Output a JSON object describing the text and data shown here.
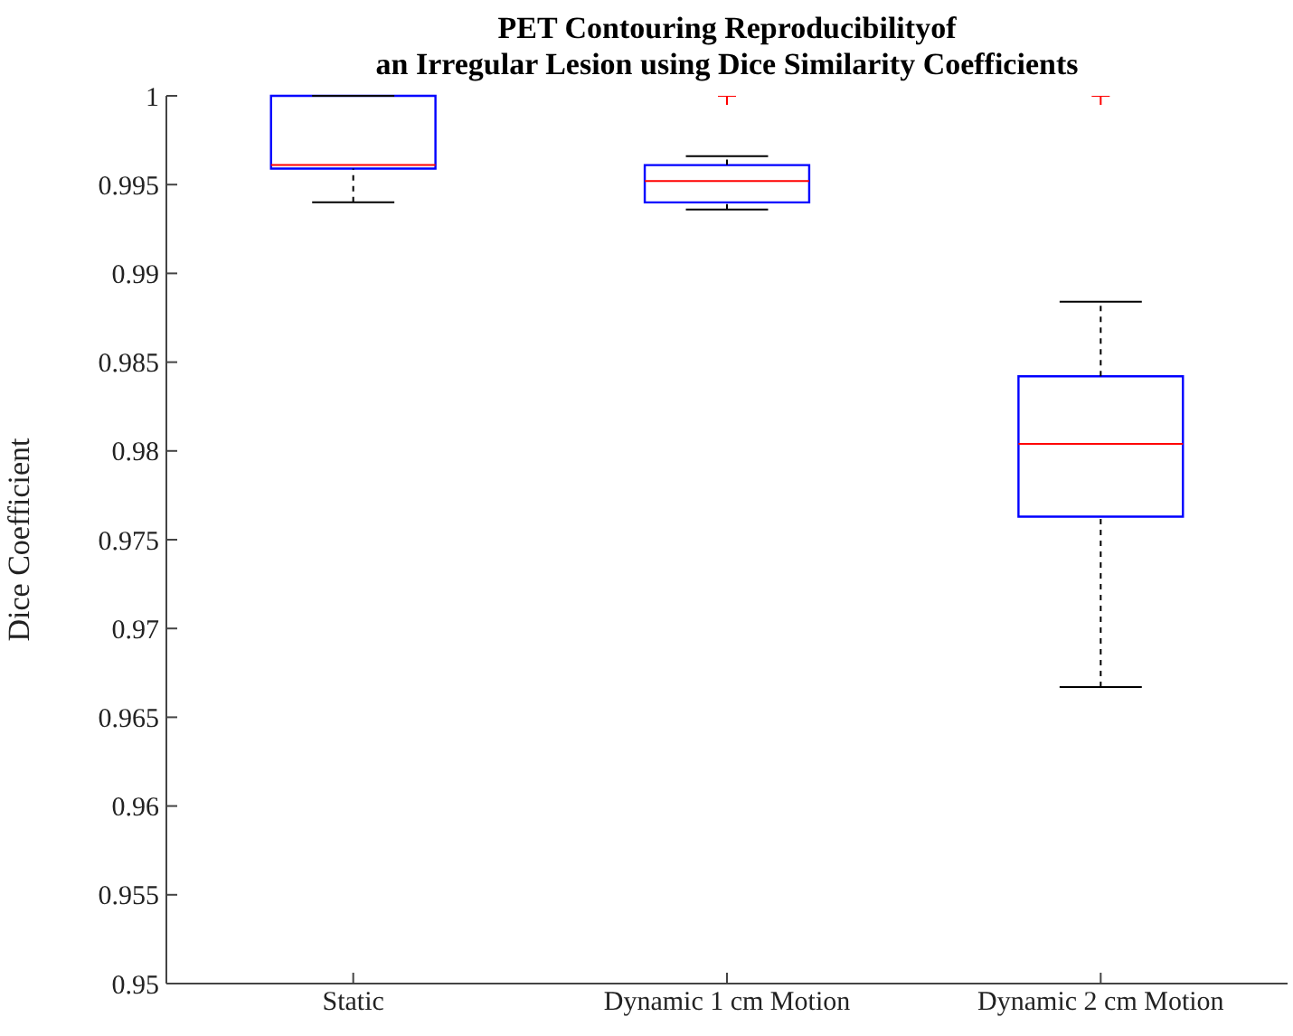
{
  "chart_data": {
    "type": "box",
    "title": "PET Contouring Reproducibilityof\nan Irregular Lesion using Dice Similarity Coefficients",
    "ylabel": "Dice Coefficient",
    "categories": [
      "Static",
      "Dynamic 1 cm Motion",
      "Dynamic 2 cm Motion"
    ],
    "boxes": [
      {
        "low": 0.994,
        "q1": 0.9959,
        "median": 0.9961,
        "q3": 1,
        "high": 1
      },
      {
        "low": 0.9936,
        "q1": 0.994,
        "median": 0.9952,
        "q3": 0.9961,
        "high": 0.9966,
        "outliers": [
          1
        ]
      },
      {
        "low": 0.9667,
        "q1": 0.9763,
        "median": 0.9804,
        "q3": 0.9842,
        "high": 0.9884,
        "outliers": [
          1
        ]
      }
    ],
    "color": "#0000ff",
    "ylim": [
      0.95,
      1
    ],
    "yticks": [
      0.95,
      0.955,
      0.96,
      0.965,
      0.97,
      0.975,
      0.98,
      0.985,
      0.99,
      0.995,
      1
    ],
    "grid": false
  }
}
